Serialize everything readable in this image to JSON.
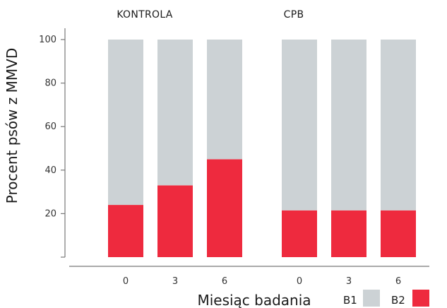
{
  "chart_data": {
    "type": "bar",
    "stacked": true,
    "groups": [
      {
        "label": "KONTROLA",
        "categories": [
          "0",
          "3",
          "6"
        ]
      },
      {
        "label": "CPB",
        "categories": [
          "0",
          "3",
          "6"
        ]
      }
    ],
    "series": [
      {
        "name": "B1",
        "color": "#ccd2d5",
        "values": [
          76,
          67,
          55,
          78.5,
          78.5,
          78.5
        ]
      },
      {
        "name": "B2",
        "color": "#ee2a3e",
        "values": [
          24,
          33,
          45,
          21.5,
          21.5,
          21.5
        ]
      }
    ],
    "ylabel": "Procent psów z MMVD",
    "xlabel": "Miesiąc badania",
    "yticks": [
      20,
      40,
      60,
      80,
      100
    ],
    "ylim": [
      0,
      100
    ],
    "grid": false,
    "legend_position": "bottom-right"
  }
}
